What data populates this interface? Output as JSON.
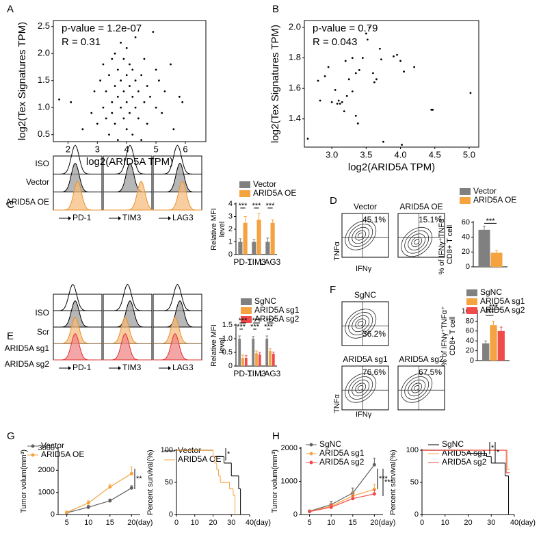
{
  "panel_labels": [
    "A",
    "B",
    "C",
    "D",
    "E",
    "F",
    "G",
    "H"
  ],
  "flow": {
    "C": {
      "rows": [
        "ISO",
        "Vector",
        "ARID5A OE"
      ],
      "markers": [
        "PD-1",
        "TIM3",
        "LAG3"
      ]
    },
    "D": {
      "samples": [
        "Vector",
        "ARID5A OE"
      ],
      "percents": [
        "45.1%",
        "15.1%"
      ],
      "y_label": "TNFα",
      "x_label": "IFNγ"
    },
    "E": {
      "rows": [
        "ISO",
        "Scr",
        "ARID5A sg1",
        "ARID5A sg2"
      ],
      "markers": [
        "PD-1",
        "TIM3",
        "LAG3"
      ]
    },
    "F": {
      "samples": [
        "SgNC",
        "ARID5A sg1",
        "ARID5A sg2"
      ],
      "percents": [
        "36.2%",
        "76.6%",
        "67.5%"
      ],
      "y_label": "TNFα",
      "x_label": "IFNγ"
    }
  },
  "chart_data": [
    {
      "type": "scatter",
      "annotations": [
        "p-value = 1.2e-07",
        "R = 0.31"
      ],
      "xlabel": "log2(ARID5A TPM)",
      "ylabel": "log2(Tex Signatures TPM)",
      "xlim": [
        1.5,
        6.7
      ],
      "xticks": [
        2,
        3,
        4,
        5,
        6
      ],
      "ylim": [
        0.37,
        2.61
      ],
      "yticks": [
        0.5,
        {
          "value": 1,
          "label": "1.0"
        },
        1.5,
        {
          "value": 2,
          "label": "2.0"
        },
        2.5
      ],
      "color": "#000000",
      "x": [
        2.1,
        2.5,
        2.8,
        2.9,
        3.0,
        3.1,
        3.2,
        3.2,
        3.3,
        3.3,
        3.4,
        3.4,
        3.5,
        3.5,
        3.5,
        3.6,
        3.6,
        3.6,
        3.7,
        3.7,
        3.7,
        3.8,
        3.8,
        3.8,
        3.9,
        3.9,
        3.9,
        4.0,
        4.0,
        4.0,
        4.0,
        4.1,
        4.1,
        4.1,
        4.2,
        4.2,
        4.2,
        4.3,
        4.3,
        4.3,
        4.4,
        4.4,
        4.5,
        4.5,
        4.6,
        4.6,
        4.7,
        4.7,
        4.8,
        4.9,
        5.0,
        5.0,
        5.1,
        5.2,
        5.3,
        5.5,
        5.6,
        5.8,
        5.9,
        1.7
      ],
      "values": [
        1.1,
        0.6,
        0.9,
        1.3,
        0.7,
        1.5,
        1.0,
        1.8,
        0.8,
        1.3,
        1.6,
        0.5,
        1.1,
        1.9,
        0.9,
        1.4,
        2.0,
        0.7,
        1.2,
        1.7,
        0.4,
        1.0,
        1.5,
        2.2,
        0.8,
        1.3,
        1.9,
        0.6,
        1.1,
        1.6,
        2.1,
        0.9,
        1.4,
        1.8,
        0.5,
        1.2,
        1.7,
        1.0,
        1.5,
        2.3,
        0.8,
        1.3,
        1.6,
        0.4,
        1.1,
        1.9,
        1.4,
        0.7,
        1.2,
        2.4,
        1.0,
        1.7,
        1.5,
        0.9,
        1.3,
        1.8,
        0.6,
        1.2,
        1.1,
        1.15
      ]
    },
    {
      "type": "scatter",
      "annotations": [
        "p-value = 0.79",
        "R = 0.043"
      ],
      "xlabel": "log2(ARID5A TPM)",
      "ylabel": "log2(Tex Signatures TPM)",
      "xlim": [
        2.6,
        5.14
      ],
      "xticks": [
        {
          "value": 3,
          "label": "3.0"
        },
        3.5,
        {
          "value": 4,
          "label": "4.0"
        },
        4.5,
        {
          "value": 5,
          "label": "5.0"
        }
      ],
      "ylim": [
        1.215,
        2.045
      ],
      "yticks": [
        1.4,
        1.6,
        1.8,
        {
          "value": 2,
          "label": "2.0"
        }
      ],
      "color": "#000000",
      "x": [
        2.65,
        2.8,
        2.83,
        2.9,
        2.95,
        3.0,
        3.05,
        3.08,
        3.1,
        3.12,
        3.15,
        3.18,
        3.2,
        3.22,
        3.25,
        3.3,
        3.3,
        3.35,
        3.35,
        3.38,
        3.4,
        3.45,
        3.5,
        3.52,
        3.55,
        3.6,
        3.62,
        3.65,
        3.7,
        3.72,
        3.75,
        3.9,
        3.95,
        4.0,
        4.02,
        4.05,
        4.2,
        4.45,
        4.47,
        5.02
      ],
      "values": [
        1.27,
        1.65,
        1.52,
        1.68,
        1.74,
        1.51,
        1.59,
        1.5,
        1.52,
        1.5,
        1.51,
        1.45,
        1.78,
        1.55,
        1.66,
        1.8,
        1.58,
        1.7,
        1.42,
        1.37,
        1.72,
        1.8,
        1.96,
        1.92,
        2.0,
        1.7,
        1.64,
        1.66,
        1.86,
        1.79,
        1.25,
        1.81,
        1.82,
        1.78,
        1.23,
        1.71,
        1.74,
        1.46,
        1.46,
        1.57
      ]
    },
    {
      "type": "bar",
      "categories": [
        "PD-1",
        "TIM3",
        "LAG3"
      ],
      "ylabel": [
        "Relative MFI",
        "level"
      ],
      "ylim": [
        0,
        4
      ],
      "yticks": [
        0,
        1,
        2,
        3,
        4
      ],
      "series": [
        {
          "name": "Vector",
          "color": "#808080",
          "values": [
            1,
            1,
            1
          ],
          "errors": [
            0.25,
            0.18,
            0.3
          ]
        },
        {
          "name": "ARID5A OE",
          "color": "#f5a340",
          "values": [
            2.5,
            2.75,
            2.5
          ],
          "errors": [
            0.5,
            0.5,
            0.25
          ]
        }
      ],
      "significance": [
        "***",
        "***",
        "***"
      ]
    },
    {
      "type": "bar",
      "categories": [
        null
      ],
      "ylabel": [
        "% of IFNγ⁺TNFα⁺",
        "CD8+ T cell"
      ],
      "ylim": [
        0,
        60
      ],
      "yticks": [
        0,
        20,
        40,
        60
      ],
      "series": [
        {
          "name": "Vector",
          "color": "#808080",
          "values": [
            50
          ],
          "errors": [
            5
          ]
        },
        {
          "name": "ARID5A OE",
          "color": "#f5a340",
          "values": [
            19
          ],
          "errors": [
            3
          ]
        }
      ],
      "significance": [
        "***"
      ]
    },
    {
      "type": "bar",
      "categories": [
        "PD-1",
        "TIM3",
        "LAG3"
      ],
      "ylabel": [
        "Relative MFI",
        "level"
      ],
      "ylim": [
        0,
        1.5
      ],
      "yticks": [
        0,
        0.5,
        {
          "value": 1,
          "label": "1.0"
        },
        1.5
      ],
      "series": [
        {
          "name": "SgNC",
          "color": "#808080",
          "values": [
            1,
            1,
            1
          ],
          "errors": [
            0.1,
            0.08,
            0.1
          ]
        },
        {
          "name": "ARID5A sg1",
          "color": "#f5a340",
          "values": [
            0.3,
            0.47,
            0.55
          ],
          "errors": [
            0.1,
            0.08,
            0.08
          ]
        },
        {
          "name": "ARID5A sg2",
          "color": "#f04a4a",
          "values": [
            0.3,
            0.42,
            0.45
          ],
          "errors": [
            0.08,
            0.08,
            0.06
          ]
        }
      ],
      "significance": [
        "***",
        "***",
        "***",
        "***",
        "***",
        "***"
      ]
    },
    {
      "type": "bar",
      "categories": [
        null
      ],
      "ylabel": [
        "% of IFNγ⁺TNFα⁺",
        "CD8+ T cell"
      ],
      "ylim": [
        0,
        100
      ],
      "yticks": [
        0,
        20,
        40,
        60,
        80,
        100
      ],
      "series": [
        {
          "name": "SgNC",
          "color": "#808080",
          "values": [
            35
          ],
          "errors": [
            5
          ]
        },
        {
          "name": "ARID5A sg1",
          "color": "#f5a340",
          "values": [
            72
          ],
          "errors": [
            8
          ]
        },
        {
          "name": "ARID5A sg2",
          "color": "#f04a4a",
          "values": [
            60
          ],
          "errors": [
            8
          ]
        }
      ],
      "significance": [
        "***",
        "***"
      ]
    },
    {
      "type": "line",
      "ylabel": "Tumor volum(mm³)",
      "xunit": "(day)",
      "x": [
        5,
        10,
        15,
        20
      ],
      "xlim": [
        3,
        22
      ],
      "xticks": [
        5,
        10,
        15,
        20
      ],
      "ylim": [
        0,
        3000
      ],
      "yticks": [
        0,
        1000,
        2000,
        3000
      ],
      "series": [
        {
          "name": "Vector",
          "color": "#606060",
          "values": [
            80,
            330,
            620,
            1200
          ],
          "errors": [
            20,
            80,
            80,
            100
          ]
        },
        {
          "name": "ARID5A OE",
          "color": "#f5a340",
          "values": [
            100,
            520,
            1250,
            1850
          ],
          "errors": [
            20,
            100,
            120,
            300
          ]
        }
      ],
      "significance": [
        "**"
      ]
    },
    {
      "type": "survival",
      "ylabel": "Percent survival(%)",
      "xunit": "(day)",
      "xlim": [
        0,
        40
      ],
      "xticks": [
        0,
        10,
        20,
        30,
        40
      ],
      "ylim": [
        0,
        100
      ],
      "yticks": [
        0,
        50,
        100
      ],
      "series": [
        {
          "name": "Vector",
          "color": "#000000",
          "x": [
            0,
            20,
            26,
            30,
            34,
            35
          ],
          "values": [
            100,
            90,
            80,
            60,
            40,
            0
          ]
        },
        {
          "name": "ARID5A OE",
          "color": "#f5a340",
          "x": [
            0,
            20,
            21,
            22,
            23,
            24,
            29,
            31,
            32
          ],
          "values": [
            100,
            90,
            80,
            70,
            60,
            50,
            40,
            30,
            0
          ]
        }
      ],
      "significance": [
        "*"
      ]
    },
    {
      "type": "line",
      "ylabel": "Tumor volum(mm³)",
      "xunit": "(day)",
      "x": [
        5,
        10,
        15,
        20
      ],
      "xlim": [
        3,
        22
      ],
      "xticks": [
        5,
        10,
        15,
        20
      ],
      "ylim": [
        0,
        2000
      ],
      "yticks": [
        0,
        1000,
        2000
      ],
      "series": [
        {
          "name": "SgNC",
          "color": "#606060",
          "values": [
            100,
            300,
            650,
            1500
          ],
          "errors": [
            20,
            100,
            150,
            200
          ]
        },
        {
          "name": "ARID5A sg1",
          "color": "#f5a340",
          "values": [
            90,
            250,
            560,
            760
          ],
          "errors": [
            20,
            80,
            120,
            150
          ]
        },
        {
          "name": "ARID5A sg2",
          "color": "#f04a4a",
          "values": [
            90,
            220,
            480,
            620
          ],
          "errors": [
            20,
            80,
            100,
            120
          ]
        }
      ],
      "significance": [
        "***",
        "***"
      ]
    },
    {
      "type": "survival",
      "ylabel": "Percent survival(%)",
      "xunit": "(day)",
      "xlim": [
        0,
        40
      ],
      "xticks": [
        0,
        10,
        20,
        30,
        40
      ],
      "ylim": [
        0,
        100
      ],
      "yticks": [
        0,
        50,
        100
      ],
      "series": [
        {
          "name": "SgNC",
          "color": "#000000",
          "x": [
            0,
            20,
            28,
            30,
            36,
            37.5
          ],
          "values": [
            100,
            95,
            90,
            80,
            60,
            0
          ]
        },
        {
          "name": "ARID5A sg1",
          "color": "#f5a340",
          "x": [
            0,
            37,
            38
          ],
          "values": [
            100,
            70,
            70
          ]
        },
        {
          "name": "ARID5A sg2",
          "color": "#f04a4a",
          "x": [
            0,
            36.5,
            38
          ],
          "values": [
            100,
            65,
            65
          ]
        }
      ],
      "significance": [
        "*",
        "*"
      ]
    }
  ]
}
